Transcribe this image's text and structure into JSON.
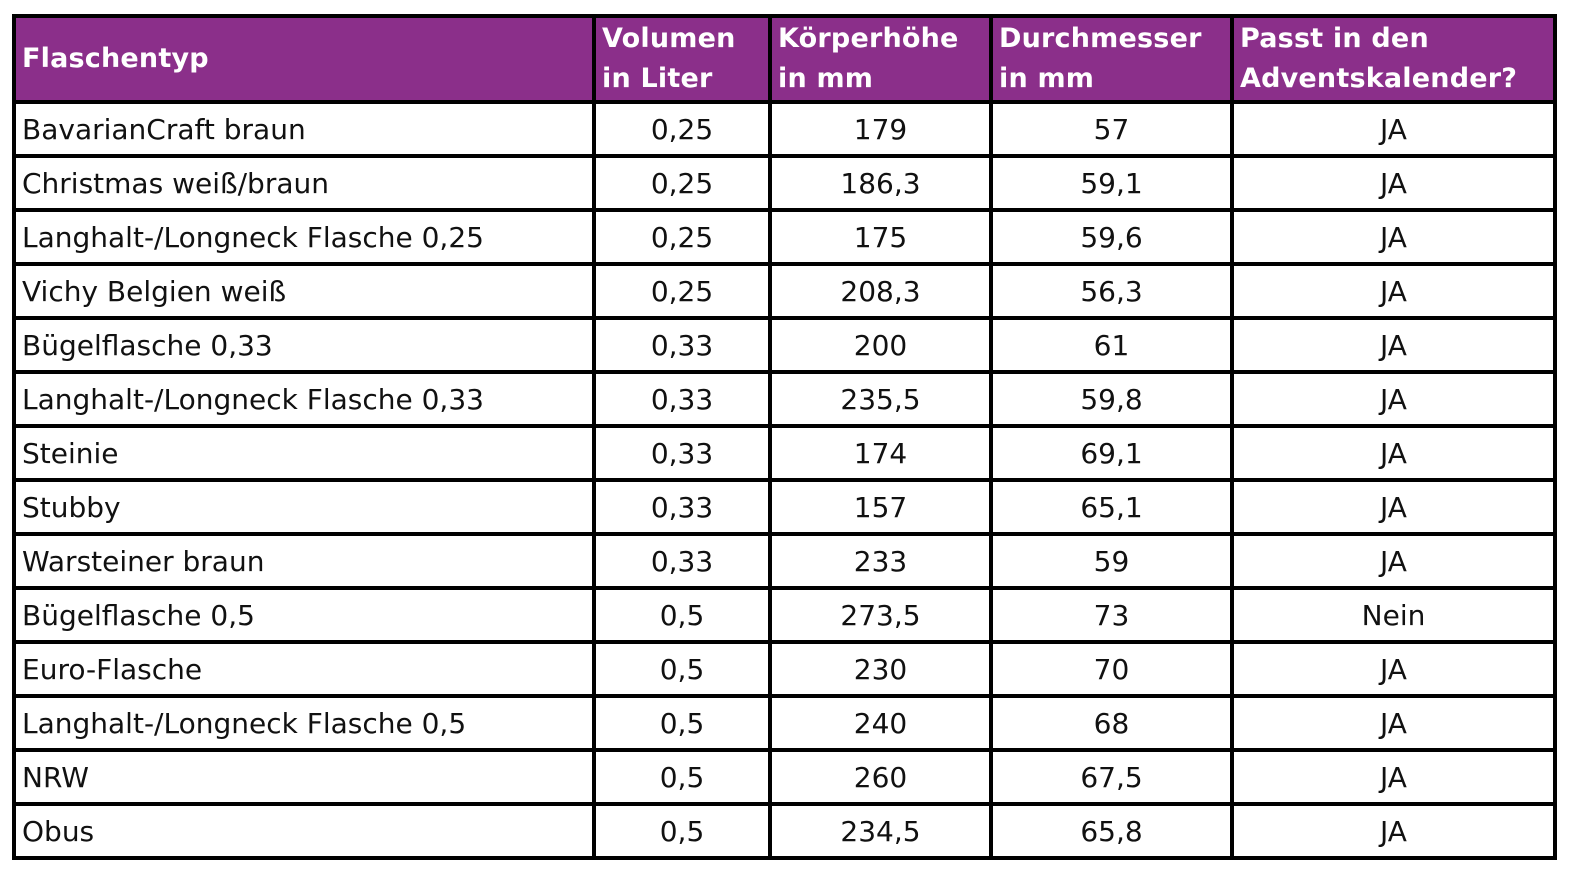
{
  "table": {
    "headers": [
      "Flaschentyp",
      "Volumen\nin Liter",
      "Körperhöhe\nin mm",
      "Durchmesser\nin mm",
      "Passt in den\nAdventskalender?"
    ],
    "rows": [
      {
        "name": "BavarianCraft braun",
        "volume": "0,25",
        "height": "179",
        "diameter": "57",
        "fits": "JA"
      },
      {
        "name": "Christmas weiß/braun",
        "volume": "0,25",
        "height": "186,3",
        "diameter": "59,1",
        "fits": "JA"
      },
      {
        "name": "Langhalt-/Longneck Flasche 0,25",
        "volume": "0,25",
        "height": "175",
        "diameter": "59,6",
        "fits": "JA"
      },
      {
        "name": "Vichy Belgien weiß",
        "volume": "0,25",
        "height": "208,3",
        "diameter": "56,3",
        "fits": "JA"
      },
      {
        "name": "Bügelflasche 0,33",
        "volume": "0,33",
        "height": "200",
        "diameter": "61",
        "fits": "JA"
      },
      {
        "name": "Langhalt-/Longneck Flasche 0,33",
        "volume": "0,33",
        "height": "235,5",
        "diameter": "59,8",
        "fits": "JA"
      },
      {
        "name": "Steinie",
        "volume": "0,33",
        "height": "174",
        "diameter": "69,1",
        "fits": "JA"
      },
      {
        "name": "Stubby",
        "volume": "0,33",
        "height": "157",
        "diameter": "65,1",
        "fits": "JA"
      },
      {
        "name": "Warsteiner braun",
        "volume": "0,33",
        "height": "233",
        "diameter": "59",
        "fits": "JA"
      },
      {
        "name": "Bügelflasche 0,5",
        "volume": "0,5",
        "height": "273,5",
        "diameter": "73",
        "fits": "Nein"
      },
      {
        "name": "Euro-Flasche",
        "volume": "0,5",
        "height": "230",
        "diameter": "70",
        "fits": "JA"
      },
      {
        "name": "Langhalt-/Longneck Flasche 0,5",
        "volume": "0,5",
        "height": "240",
        "diameter": "68",
        "fits": "JA"
      },
      {
        "name": "NRW",
        "volume": "0,5",
        "height": "260",
        "diameter": "67,5",
        "fits": "JA"
      },
      {
        "name": "Obus",
        "volume": "0,5",
        "height": "234,5",
        "diameter": "65,8",
        "fits": "JA"
      }
    ]
  },
  "colors": {
    "header_bg": "#8b2f8a",
    "header_text": "#ffffff",
    "border": "#000000",
    "cell_bg": "#ffffff"
  }
}
